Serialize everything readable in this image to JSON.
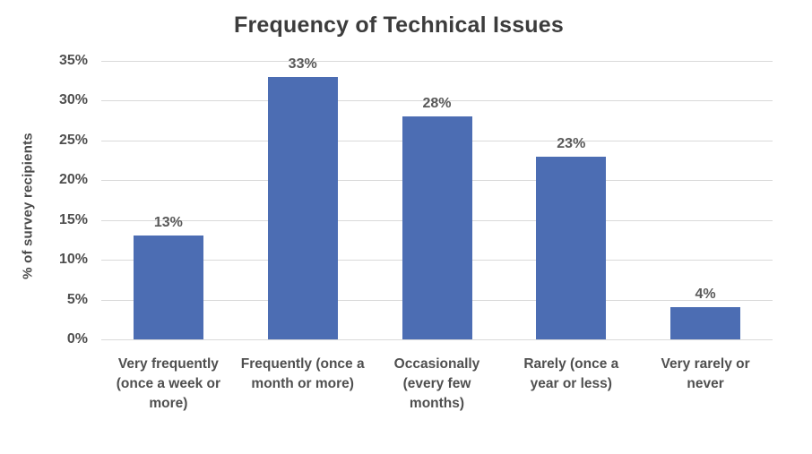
{
  "chart_data": {
    "type": "bar",
    "title": "Frequency of Technical Issues",
    "xlabel": "",
    "ylabel": "% of survey recipients",
    "categories": [
      "Very frequently (once a week or more)",
      "Frequently (once a month or more)",
      "Occasionally (every few months)",
      "Rarely (once a year or less)",
      "Very rarely or never"
    ],
    "categories_wrapped": [
      "Very frequently\n(once a week or\nmore)",
      "Frequently (once a\nmonth or more)",
      "Occasionally\n(every few\nmonths)",
      "Rarely (once a\nyear or less)",
      "Very rarely or\nnever"
    ],
    "values": [
      13,
      33,
      28,
      23,
      4
    ],
    "value_labels": [
      "13%",
      "33%",
      "28%",
      "23%",
      "4%"
    ],
    "ylim": [
      0,
      35
    ],
    "ytick_step": 5,
    "ytick_labels": [
      "0%",
      "5%",
      "10%",
      "15%",
      "20%",
      "25%",
      "30%",
      "35%"
    ],
    "grid": "horizontal",
    "legend": "none",
    "colors": {
      "bar": "#4c6db3",
      "gridline": "#d9d9d9",
      "title_text": "#3c3c3c",
      "label_text": "#595959",
      "tick_text": "#4f4f4f",
      "background": "#ffffff"
    }
  }
}
